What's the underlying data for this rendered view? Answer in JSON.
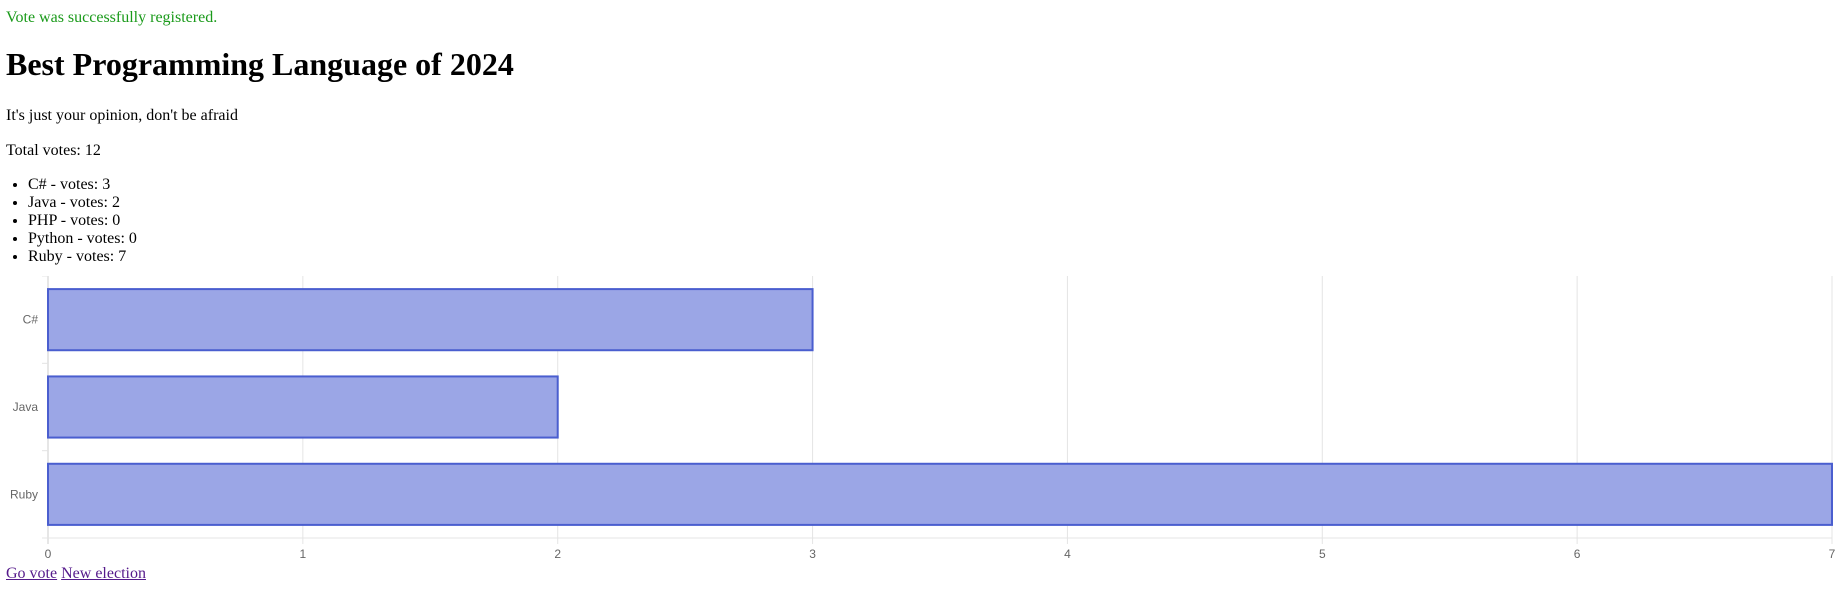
{
  "flash_message": "Vote was successfully registered.",
  "poll": {
    "title": "Best Programming Language of 2024",
    "subtitle": "It's just your opinion, don't be afraid",
    "total_votes_text": "Total votes: 12",
    "results": [
      {
        "label": "C# - votes: 3"
      },
      {
        "label": "Java - votes: 2"
      },
      {
        "label": "PHP - votes: 0"
      },
      {
        "label": "Python - votes: 0"
      },
      {
        "label": "Ruby - votes: 7"
      }
    ]
  },
  "chart_data": {
    "type": "bar",
    "orientation": "horizontal",
    "categories": [
      "C#",
      "Java",
      "Ruby"
    ],
    "values": [
      3,
      2,
      7
    ],
    "xlim": [
      0,
      7
    ],
    "x_ticks": [
      0,
      1,
      2,
      3,
      4,
      5,
      6,
      7
    ],
    "grid": true,
    "bar_fill": "#9ba6e6",
    "bar_stroke": "#4a5ecf",
    "title": "",
    "xlabel": "",
    "ylabel": ""
  },
  "links": {
    "go_vote": "Go vote",
    "new_election": "New election"
  }
}
